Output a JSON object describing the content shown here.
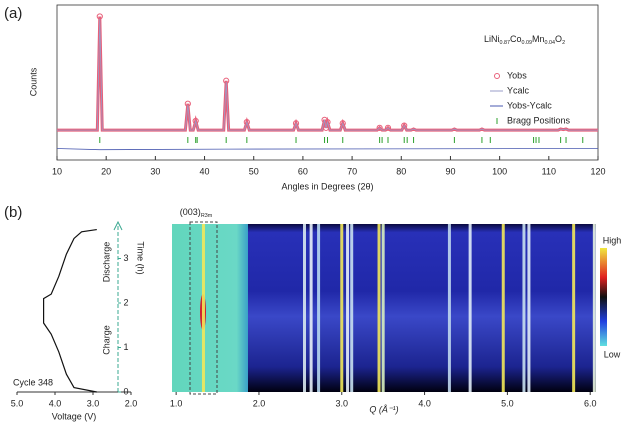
{
  "chart_data": [
    {
      "type": "line",
      "panel": "(a)",
      "xlabel": "Angles in Degrees (2θ)",
      "ylabel": "Counts",
      "annotation": [
        "LiNi",
        "0.87",
        "Co",
        "0.09",
        "Mn",
        "0.04",
        "O",
        "2"
      ],
      "xlim": [
        10,
        120
      ],
      "xticks": [
        10,
        20,
        30,
        40,
        50,
        60,
        70,
        80,
        90,
        100,
        110,
        120
      ],
      "ylim": [
        -25,
        110
      ],
      "series": [
        {
          "name": "Yobs",
          "color": "#e8607a",
          "marker": "circle",
          "x": [
            10,
            18.2,
            18.7,
            19.2,
            36.1,
            36.6,
            37.1,
            37.7,
            38.2,
            38.7,
            43.9,
            44.4,
            44.9,
            48.1,
            48.6,
            49.1,
            58.1,
            58.6,
            59.1,
            63.9,
            64.4,
            64.7,
            65.0,
            65.5,
            67.6,
            68.1,
            68.6,
            75.1,
            75.6,
            76.1,
            76.8,
            77.3,
            77.8,
            80.1,
            80.6,
            81.1,
            82.0,
            82.5,
            83.0,
            90.3,
            90.8,
            91.3,
            95.9,
            96.4,
            96.9,
            106.9,
            107.4,
            107.9,
            111.9,
            112.4,
            112.95,
            113.5,
            114.0,
            120
          ],
          "values": [
            1,
            1,
            100,
            1,
            1,
            24,
            1,
            1,
            9,
            1,
            1,
            44,
            1,
            1,
            8,
            1,
            1,
            7,
            1,
            1,
            10,
            3,
            8,
            1,
            1,
            7,
            1,
            1,
            3,
            1,
            1,
            3,
            1,
            1,
            5,
            1,
            1,
            2,
            1,
            1,
            2,
            1,
            1,
            2,
            1,
            1,
            1,
            1,
            1,
            2,
            1.5,
            2,
            1,
            1
          ]
        },
        {
          "name": "Ycalc",
          "color": "#9a9cc8",
          "marker": "line",
          "x": [
            10,
            18.2,
            18.7,
            19.2,
            36.1,
            36.6,
            37.1,
            37.7,
            38.2,
            38.7,
            43.9,
            44.4,
            44.9,
            48.1,
            48.6,
            49.1,
            58.1,
            58.6,
            59.1,
            63.9,
            64.4,
            64.7,
            65.0,
            65.5,
            67.6,
            68.1,
            68.6,
            75.1,
            75.6,
            76.1,
            76.8,
            77.3,
            77.8,
            80.1,
            80.6,
            81.1,
            82.0,
            82.5,
            83.0,
            90.3,
            90.8,
            91.3,
            95.9,
            96.4,
            96.9,
            106.9,
            107.4,
            107.9,
            111.9,
            112.4,
            112.95,
            113.5,
            114.0,
            120
          ],
          "values": [
            1,
            1,
            98,
            1,
            1,
            23,
            1,
            1,
            9,
            1,
            1,
            43,
            1,
            1,
            8,
            1,
            1,
            7,
            1,
            1,
            10,
            3,
            8,
            1,
            1,
            7,
            1,
            1,
            3,
            1,
            1,
            3,
            1,
            1,
            5,
            1,
            1,
            2,
            1,
            1,
            2,
            1,
            1,
            2,
            1,
            1,
            1,
            1,
            1,
            2,
            1.5,
            2,
            1,
            1
          ]
        },
        {
          "name": "Yobs-Ycalc",
          "color": "#4a5ab0",
          "marker": "line",
          "x": [
            10,
            18.7,
            44.4,
            120
          ],
          "values": [
            -15,
            -16,
            -15.5,
            -15
          ]
        },
        {
          "name": "Bragg Positions",
          "color": "#2ca02c",
          "marker": "tick",
          "x": [
            18.7,
            36.6,
            38.2,
            38.5,
            44.4,
            48.6,
            58.6,
            64.4,
            65.0,
            68.1,
            75.6,
            76.1,
            77.3,
            80.6,
            81.2,
            82.5,
            90.8,
            96.4,
            98.1,
            106.9,
            107.4,
            108.0,
            112.4,
            113.5,
            116.9
          ]
        }
      ]
    },
    {
      "type": "line",
      "panel": "(b)",
      "xlabel": "Voltage (V)",
      "ylabel": "Time (h)",
      "annotations": [
        "Charge",
        "Discharge",
        "Cycle 348"
      ],
      "xlim": [
        5,
        2
      ],
      "xticks": [
        {
          "value": 5,
          "label": "5.0"
        },
        {
          "value": 4,
          "label": "4.0"
        },
        {
          "value": 3,
          "label": "3.0"
        },
        {
          "value": 2,
          "label": "2.0"
        }
      ],
      "ylim": [
        0,
        3.7
      ],
      "yticks": [
        0,
        1,
        2,
        3
      ],
      "series": [
        {
          "color": "#111111",
          "x": [
            2.9,
            3.5,
            3.7,
            3.9,
            4.1,
            4.3,
            4.3,
            4.1,
            3.9,
            3.7,
            3.5,
            3.3,
            2.9
          ],
          "values": [
            0,
            0.1,
            0.4,
            0.9,
            1.3,
            1.55,
            2.1,
            2.2,
            2.6,
            3.1,
            3.45,
            3.6,
            3.65
          ]
        }
      ]
    },
    {
      "type": "heatmap",
      "xlabel": "Q (Å⁻¹)",
      "annotation": [
        "(003)",
        "R3m"
      ],
      "colorbar": [
        "High",
        "Low"
      ],
      "xlim": [
        0.95,
        6.07
      ],
      "xticks": [
        {
          "value": 1,
          "label": "1.0"
        },
        {
          "value": 2,
          "label": "2.0"
        },
        {
          "value": 3,
          "label": "3.0"
        },
        {
          "value": 4,
          "label": "4.0"
        },
        {
          "value": 5,
          "label": "5.0"
        },
        {
          "value": 6,
          "label": "6.0"
        }
      ],
      "ylim": [
        0,
        3.7
      ],
      "peaks": [
        1.33,
        2.55,
        2.63,
        2.72,
        3.0,
        3.07,
        3.12,
        3.45,
        3.5,
        4.3,
        4.55,
        4.95,
        5.2,
        5.26,
        5.8,
        6.05
      ],
      "peak_colors": [
        "#f2e85a",
        "#d8e8f0",
        "#e8f0f8",
        "#b8d8f0",
        "#f2e85a",
        "#e8f0f8",
        "#c8e0f0",
        "#f2e85a",
        "#d8f0c0",
        "#c0d8f0",
        "#e0ecf8",
        "#f2e85a",
        "#c8e0f0",
        "#e0ecf8",
        "#f2e85a",
        "#e8f4e0"
      ]
    }
  ]
}
